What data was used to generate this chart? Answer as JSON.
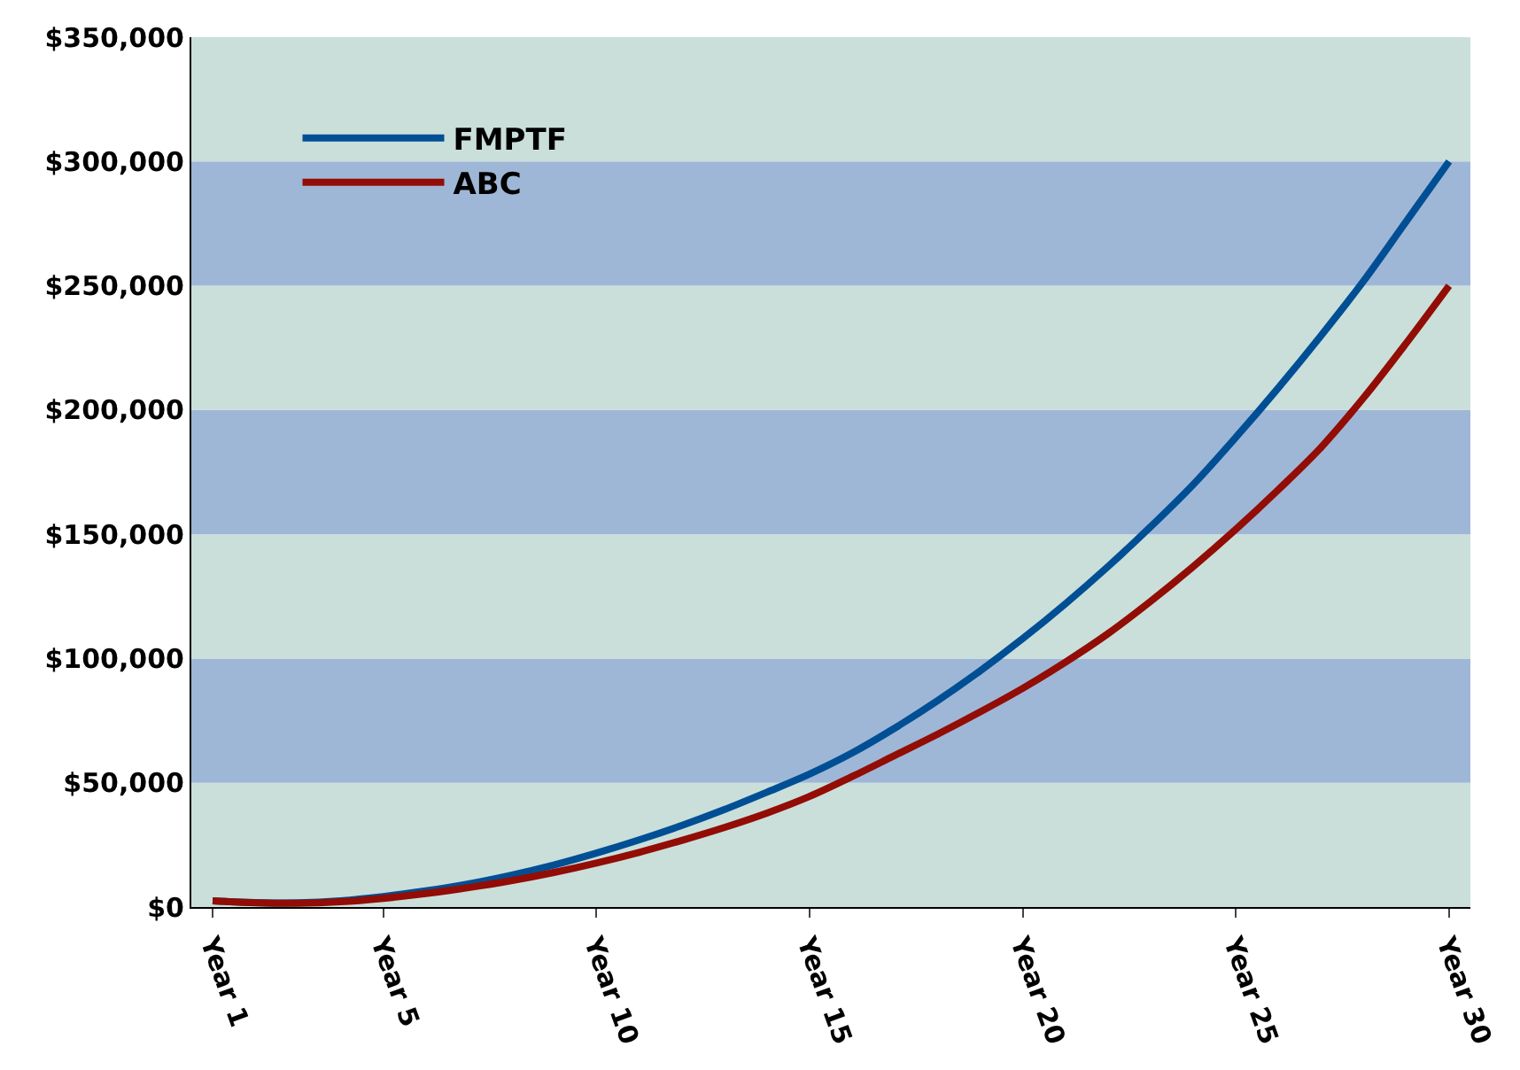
{
  "chart_data": {
    "type": "line",
    "categories": [
      "Year 1",
      null,
      null,
      null,
      "Year 5",
      null,
      null,
      null,
      null,
      "Year 10",
      null,
      null,
      null,
      null,
      "Year 15",
      null,
      null,
      null,
      null,
      "Year 20",
      null,
      null,
      null,
      null,
      "Year 25",
      null,
      null,
      null,
      null,
      "Year 30"
    ],
    "series": [
      {
        "name": "FMPTF",
        "color": "#004f95",
        "values": [
          2500,
          1800,
          1700,
          2500,
          4200,
          6500,
          9300,
          12800,
          16900,
          21700,
          27000,
          32800,
          39200,
          46200,
          53500,
          62000,
          72000,
          83000,
          95000,
          108000,
          122000,
          137000,
          153000,
          170000,
          189000,
          209000,
          230000,
          252000,
          276000,
          300000
        ]
      },
      {
        "name": "ABC",
        "color": "#920d05",
        "values": [
          2500,
          1700,
          1500,
          2100,
          3500,
          5400,
          7800,
          10600,
          13900,
          17700,
          22000,
          26800,
          32000,
          37800,
          44500,
          52500,
          61000,
          69500,
          78500,
          88000,
          98500,
          110000,
          123000,
          137000,
          152000,
          168000,
          185000,
          205000,
          227000,
          250000
        ]
      }
    ],
    "ylim": [
      0,
      350000
    ],
    "yticks": [
      {
        "value": 0,
        "label": "$0"
      },
      {
        "value": 50000,
        "label": "$50,000"
      },
      {
        "value": 100000,
        "label": "$100,000"
      },
      {
        "value": 150000,
        "label": "$150,000"
      },
      {
        "value": 200000,
        "label": "$200,000"
      },
      {
        "value": 250000,
        "label": "$250,000"
      },
      {
        "value": 300000,
        "label": "$300,000"
      },
      {
        "value": 350000,
        "label": "$350,000"
      }
    ],
    "bands": [
      {
        "axis": "y",
        "from": 0,
        "to": 50000,
        "color": "#cadfda"
      },
      {
        "axis": "y",
        "from": 50000,
        "to": 100000,
        "color": "#9fb7d7"
      },
      {
        "axis": "y",
        "from": 100000,
        "to": 150000,
        "color": "#cadfda"
      },
      {
        "axis": "y",
        "from": 150000,
        "to": 200000,
        "color": "#9fb7d7"
      },
      {
        "axis": "y",
        "from": 200000,
        "to": 250000,
        "color": "#cadfda"
      },
      {
        "axis": "y",
        "from": 250000,
        "to": 300000,
        "color": "#9fb7d7"
      },
      {
        "axis": "y",
        "from": 300000,
        "to": 350000,
        "color": "#cadfda"
      }
    ],
    "legend": "top left",
    "grid": false,
    "marker": "none",
    "line_style": "solid"
  }
}
